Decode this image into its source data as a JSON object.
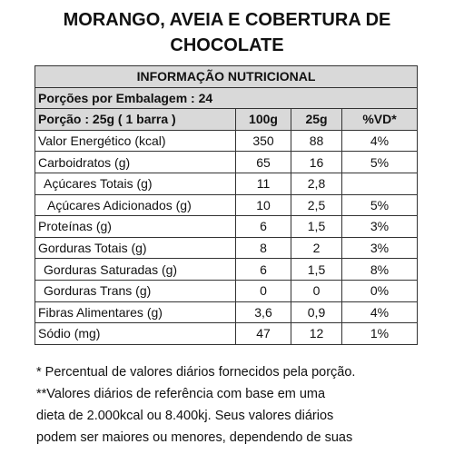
{
  "header": {
    "title": "MORANGO, AVEIA E COBERTURA DE CHOCOLATE"
  },
  "table": {
    "title": "INFORMAÇÃO NUTRICIONAL",
    "servings": "Porções por Embalagem : 24",
    "columns": [
      "Porção : 25g ( 1 barra )",
      "100g",
      "25g",
      "%VD*"
    ],
    "rows": [
      [
        "Valor Energético (kcal)",
        "350",
        "88",
        "4%"
      ],
      [
        "Carboidratos (g)",
        "65",
        "16",
        "5%"
      ],
      [
        "Açúcares Totais (g)",
        "11",
        "2,8",
        null
      ],
      [
        "Açúcares Adicionados (g)",
        "10",
        "2,5",
        "5%"
      ],
      [
        "Proteínas (g)",
        "6",
        "1,5",
        "3%"
      ],
      [
        "Gorduras Totais (g)",
        "8",
        "2",
        "3%"
      ],
      [
        "Gorduras Saturadas (g)",
        "6",
        "1,5",
        "8%"
      ],
      [
        "Gorduras Trans (g)",
        "0",
        "0",
        "0%"
      ],
      [
        "Fibras Alimentares (g)",
        "3,6",
        "0,9",
        "4%"
      ],
      [
        "Sódio (mg)",
        "47",
        "12",
        "1%"
      ]
    ]
  },
  "footnotes": [
    "* Percentual de valores diários fornecidos pela porção.",
    "**Valores diários de referência com base em uma",
    "dieta de 2.000kcal ou 8.400kj. Seus valores diários",
    "podem ser maiores ou menores, dependendo de suas"
  ]
}
